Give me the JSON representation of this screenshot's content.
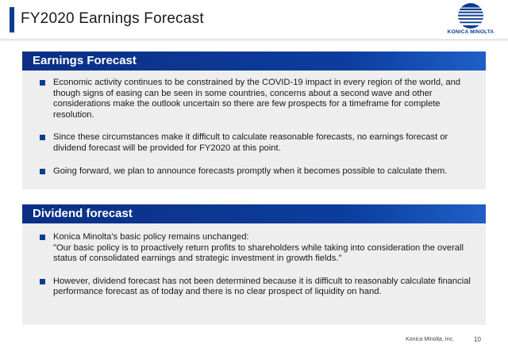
{
  "header": {
    "title": "FY2020 Earnings Forecast",
    "logo_text": "KONICA MINOLTA"
  },
  "sections": [
    {
      "heading": "Earnings Forecast",
      "bullets": [
        "Economic activity continues to be constrained by the COVID-19 impact in every region of the world, and though signs of easing can be seen in some countries, concerns about a second wave and other considerations make the outlook uncertain so there are few prospects for a timeframe for complete resolution.",
        "Since these circumstances make it difficult to calculate reasonable forecasts, no earnings forecast or dividend forecast will be provided for FY2020 at this point.",
        "Going forward, we plan to announce forecasts promptly when it becomes possible to calculate them."
      ]
    },
    {
      "heading": "Dividend forecast",
      "bullets": [
        "Konica Minolta's basic policy remains unchanged:\n\"Our basic policy is to proactively return profits to shareholders while taking into consideration the overall status of consolidated earnings and strategic investment in growth fields.\"",
        "However, dividend forecast has not been determined because it is difficult to reasonably calculate financial performance forecast as of today and there is no clear prospect of liquidity on hand."
      ]
    }
  ],
  "footer": {
    "company": "Konica Minolta, Inc.",
    "page_number": "10"
  },
  "colors": {
    "brand_blue": "#0a3d91",
    "section_background": "#eeeeee"
  }
}
